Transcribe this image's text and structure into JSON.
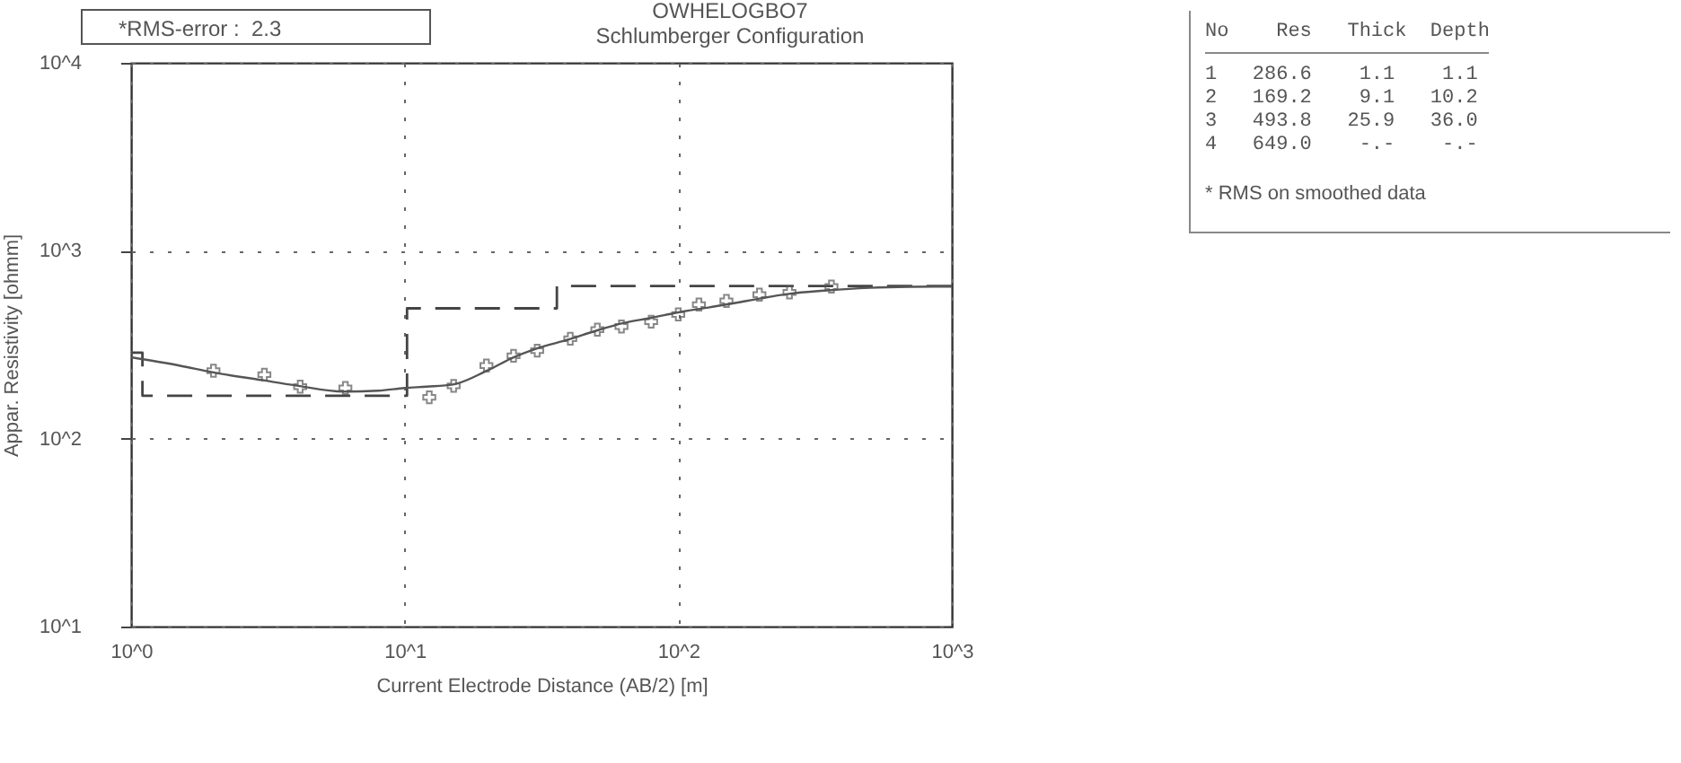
{
  "chart_data": {
    "type": "line",
    "title": "OWHELOGBO7",
    "subtitle": "Schlumberger Configuration",
    "xlabel": "Current Electrode Distance (AB/2) [m]",
    "ylabel": "Appar. Resistivity [ohmm]",
    "log": "xy",
    "grid": true,
    "xlim": [
      1,
      1000
    ],
    "xticks": [
      {
        "value": 1,
        "label": "10^0"
      },
      {
        "value": 10,
        "label": "10^1"
      },
      {
        "value": 100,
        "label": "10^2"
      },
      {
        "value": 1000,
        "label": "10^3"
      }
    ],
    "ylim": [
      10,
      10000
    ],
    "yticks": [
      {
        "value": 10,
        "label": "10^1"
      },
      {
        "value": 100,
        "label": "10^2"
      },
      {
        "value": 1000,
        "label": "10^3"
      },
      {
        "value": 10000,
        "label": "10^4"
      }
    ],
    "series": [
      {
        "type": "step",
        "color": "#444444",
        "line_style": "dashed",
        "marker": "none",
        "x": [
          1,
          1.1,
          10.2,
          36,
          1000
        ],
        "values": [
          286.6,
          169.2,
          493.8,
          649,
          649
        ]
      },
      {
        "color": "#555555",
        "line_style": "solid",
        "marker": "none",
        "x": [
          1,
          1.5,
          2,
          3,
          4,
          6,
          8,
          10,
          12,
          15,
          20,
          25,
          30,
          40,
          50,
          63,
          80,
          100,
          130,
          160,
          200,
          250,
          350,
          500,
          700,
          1000
        ],
        "values": [
          271,
          245,
          225,
          205,
          192,
          178,
          180,
          186,
          189,
          194,
          230,
          271,
          300,
          338,
          375,
          412,
          440,
          470,
          500,
          526,
          558,
          588,
          615,
          635,
          643,
          645
        ]
      },
      {
        "type": "scatter",
        "color": "#555555",
        "marker": "cross",
        "x": [
          2.0,
          3.07,
          4.15,
          6.07,
          12.3,
          15.1,
          19.9,
          25,
          30.5,
          40.3,
          50.6,
          62,
          79.6,
          100,
          119,
          150,
          198,
          255,
          363
        ],
        "values": [
          230,
          219,
          189,
          186,
          166,
          191,
          245,
          276,
          294,
          340,
          380,
          395,
          419,
          458,
          517,
          541,
          584,
          600,
          645
        ]
      }
    ],
    "annotations": [
      "*RMS-error :  2.3",
      "No    Res   Thick  Depth",
      "1   286.6    1.1    1.1",
      "2   169.2    9.1   10.2",
      "3   493.8   25.9   36.0",
      "4   649.0    -.-    -.-",
      "* RMS on smoothed data"
    ]
  }
}
